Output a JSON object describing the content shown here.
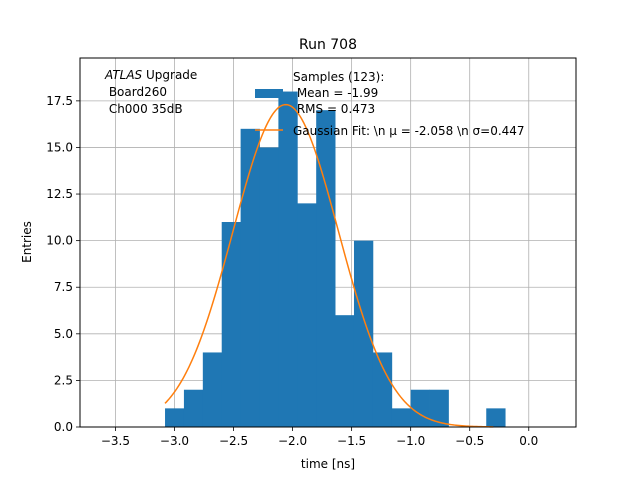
{
  "chart_data": {
    "type": "bar",
    "title": "Run 708",
    "xlabel": "time [ns]",
    "ylabel": "Entries",
    "xlim": [
      -3.8,
      0.4
    ],
    "ylim": [
      0,
      19.8
    ],
    "grid": true,
    "x_ticks": [
      -3.5,
      -3.0,
      -2.5,
      -2.0,
      -1.5,
      -1.0,
      -0.5,
      0.0
    ],
    "x_tick_labels": [
      "−3.5",
      "−3.0",
      "−2.5",
      "−2.0",
      "−1.5",
      "−1.0",
      "−0.5",
      "0.0"
    ],
    "y_ticks": [
      0,
      2.5,
      5,
      7.5,
      10,
      12.5,
      15,
      17.5
    ],
    "y_tick_labels": [
      "0.0",
      "2.5",
      "5.0",
      "7.5",
      "10.0",
      "12.5",
      "15.0",
      "17.5"
    ],
    "annotation_lines": [
      "ATLAS Upgrade",
      " Board260",
      " Ch000 35dB"
    ],
    "histogram": {
      "color": "#1f77b4",
      "bin_edges": [
        -3.08,
        -2.92,
        -2.76,
        -2.6,
        -2.44,
        -2.28,
        -2.12,
        -1.96,
        -1.8,
        -1.64,
        -1.48,
        -1.32,
        -1.16,
        -1.0,
        -0.84,
        -0.68,
        -0.52,
        -0.36,
        -0.2
      ],
      "counts": [
        1,
        2,
        4,
        11,
        16,
        15,
        18,
        12,
        17,
        6,
        10,
        4,
        1,
        2,
        2,
        0,
        0,
        1
      ],
      "legend_lines": [
        "Samples (123):",
        " Mean = -1.99",
        " RMS = 0.473"
      ]
    },
    "fit": {
      "color": "#ff7f0e",
      "amplitude": 17.3,
      "mu": -2.058,
      "sigma": 0.447,
      "x_range": [
        -3.08,
        -0.3
      ],
      "legend_label": "Gaussian Fit: \\n μ = -2.058 \\n σ=0.447"
    },
    "legend_placement": "top-right"
  }
}
